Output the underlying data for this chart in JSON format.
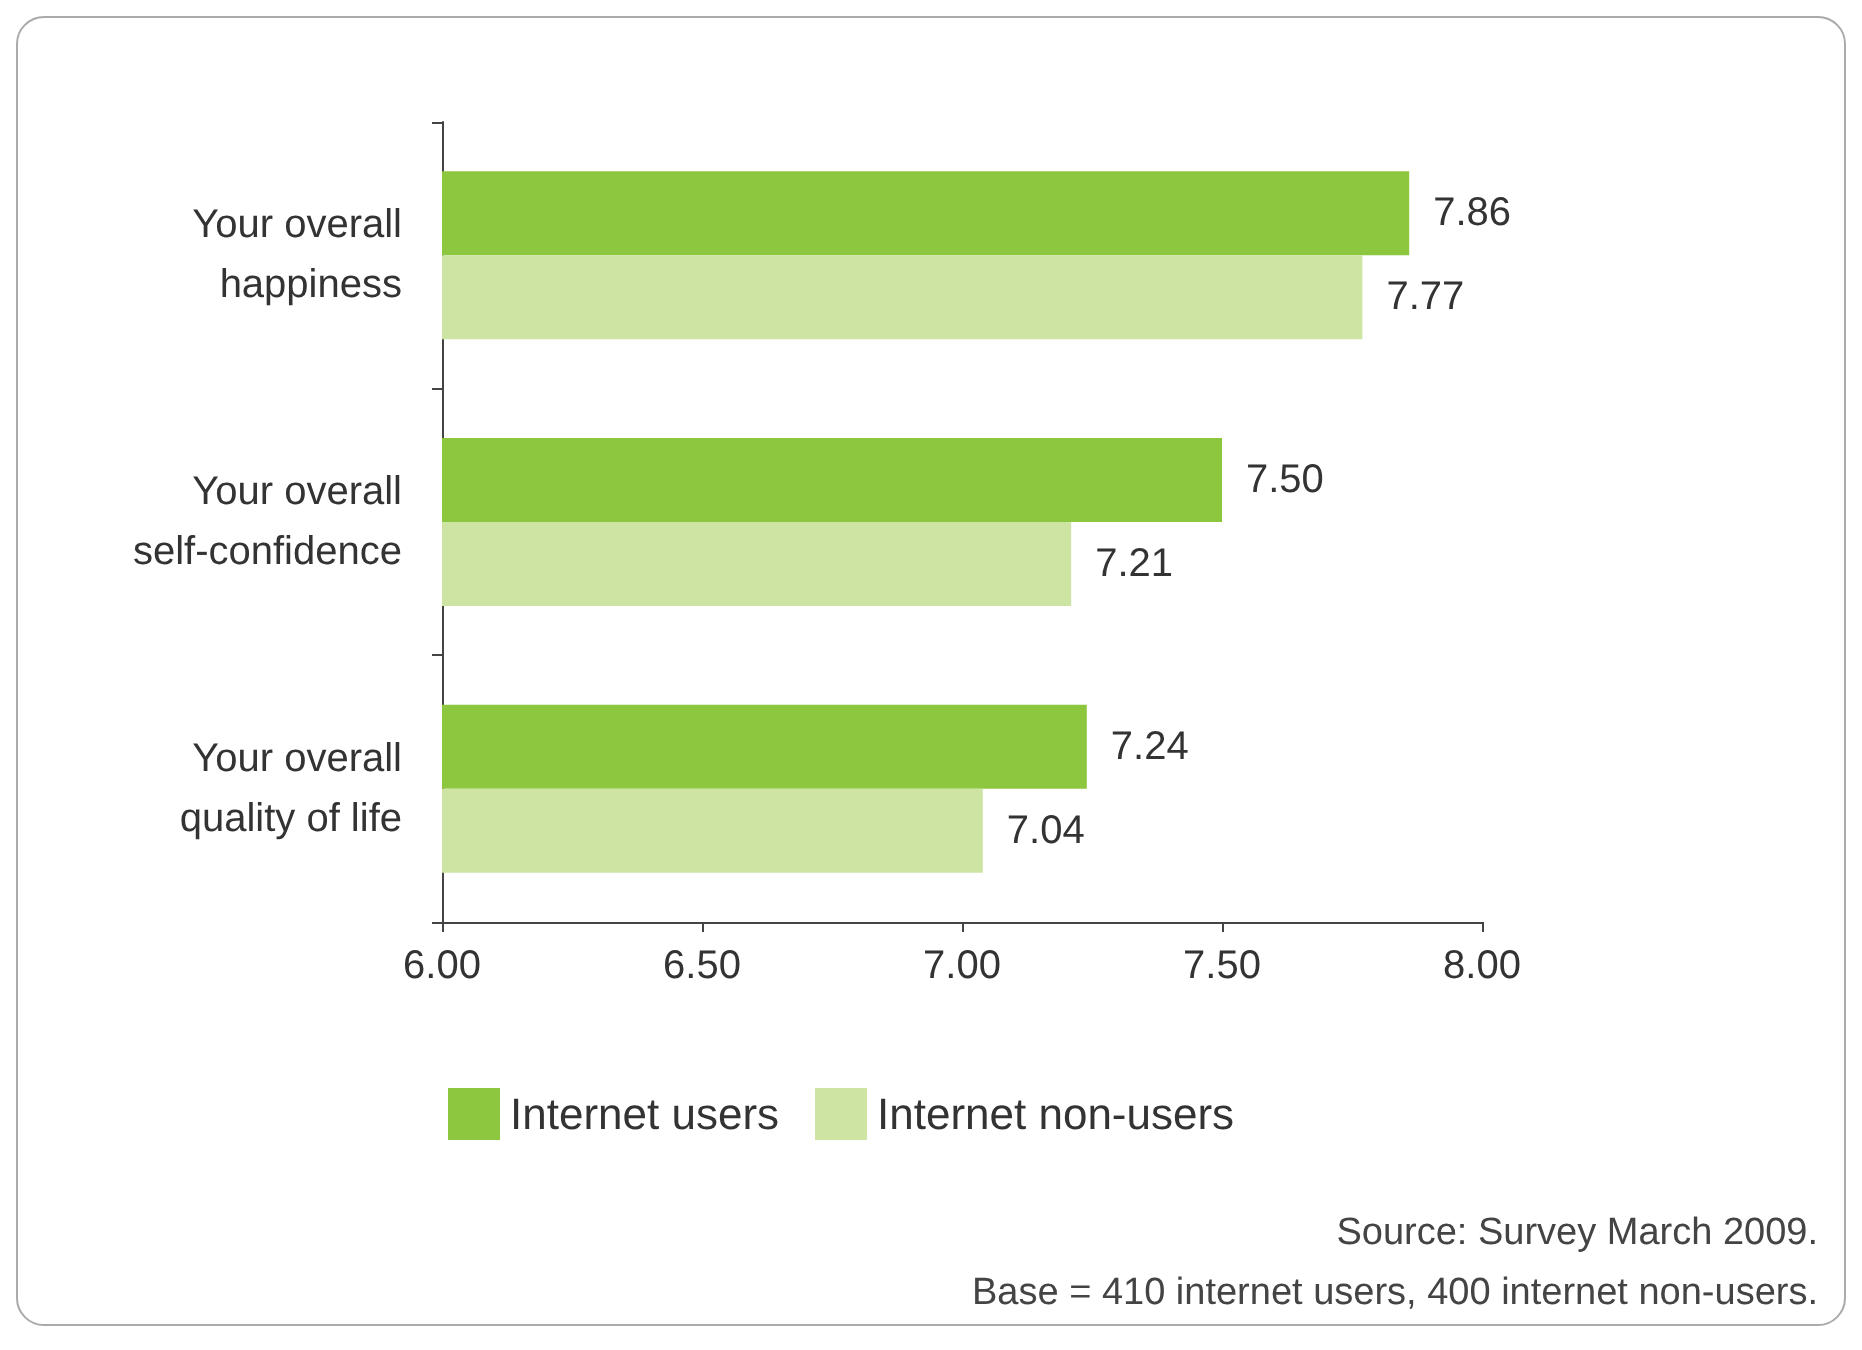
{
  "chart_data": {
    "type": "bar",
    "orientation": "horizontal",
    "categories": [
      "Your overall\nhappiness",
      "Your overall\nself-confidence",
      "Your overall\nquality of life"
    ],
    "series": [
      {
        "name": "Internet users",
        "color": "#8dc63f",
        "values": [
          7.86,
          7.5,
          7.24
        ],
        "value_labels": [
          "7.86",
          "7.50",
          "7.24"
        ]
      },
      {
        "name": "Internet non-users",
        "color": "#cde4a2",
        "values": [
          7.77,
          7.21,
          7.04
        ],
        "value_labels": [
          "7.77",
          "7.21",
          "7.04"
        ]
      }
    ],
    "xlim": [
      6,
      8
    ],
    "xticks": [
      {
        "value": 6,
        "label": "6.00"
      },
      {
        "value": 6.5,
        "label": "6.50"
      },
      {
        "value": 7,
        "label": "7.00"
      },
      {
        "value": 7.5,
        "label": "7.50"
      },
      {
        "value": 8,
        "label": "8.00"
      }
    ],
    "grid": false,
    "legend": "bottom",
    "annotations": [
      "Source: Survey March 2009.",
      "Base = 410 internet users, 400 internet non-users."
    ]
  }
}
